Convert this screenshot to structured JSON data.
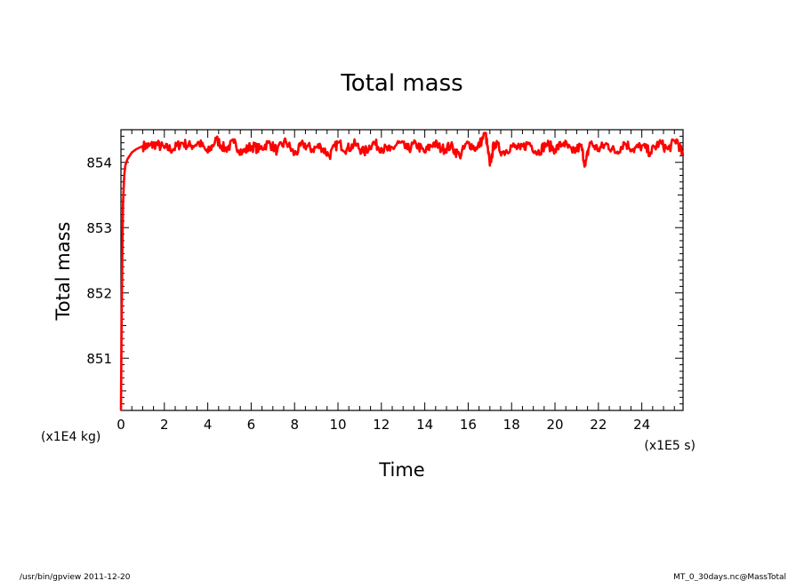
{
  "chart_data": {
    "type": "line",
    "title": "Total mass",
    "xlabel": "Time",
    "ylabel": "Total mass",
    "x_unit": "(x1E5 s)",
    "y_unit": "(x1E4 kg)",
    "xlim": [
      0,
      25.9
    ],
    "ylim": [
      850.2,
      854.5
    ],
    "x_ticks": [
      0,
      2,
      4,
      6,
      8,
      10,
      12,
      14,
      16,
      18,
      20,
      22,
      24
    ],
    "x_tick_labels": [
      "0",
      "2",
      "4",
      "6",
      "8",
      "10",
      "12",
      "14",
      "16",
      "18",
      "20",
      "22",
      "24"
    ],
    "y_ticks": [
      851,
      852,
      853,
      854
    ],
    "y_tick_labels": [
      "851",
      "852",
      "853",
      "854"
    ],
    "grid": false,
    "legend": "none",
    "series": [
      {
        "color": "#ff0000",
        "x": [
          0,
          0.03,
          0.06,
          0.1,
          0.15,
          0.2,
          0.3,
          0.4,
          0.5,
          0.7,
          1.0,
          1.3,
          1.6,
          2.0,
          2.4,
          2.8,
          3.2,
          3.6,
          4.0,
          4.4,
          4.8,
          5.2,
          5.6,
          6.0,
          6.4,
          6.8,
          7.2,
          7.6,
          8.0,
          8.4,
          8.8,
          9.2,
          9.6,
          10.0,
          10.4,
          10.8,
          11.2,
          11.6,
          12.0,
          12.4,
          12.8,
          13.2,
          13.6,
          14.0,
          14.4,
          14.8,
          15.2,
          15.6,
          16.0,
          16.4,
          16.8,
          17.0,
          17.2,
          17.6,
          18.0,
          18.4,
          18.8,
          19.2,
          19.6,
          20.0,
          20.4,
          20.8,
          21.2,
          21.4,
          21.6,
          22.0,
          22.4,
          22.8,
          23.2,
          23.6,
          24.0,
          24.4,
          24.8,
          25.2,
          25.6,
          25.9
        ],
        "y": [
          850.2,
          851.5,
          852.6,
          853.4,
          853.8,
          853.95,
          854.05,
          854.1,
          854.15,
          854.2,
          854.25,
          854.25,
          854.28,
          854.22,
          854.2,
          854.3,
          854.25,
          854.3,
          854.15,
          854.35,
          854.2,
          854.3,
          854.15,
          854.25,
          854.2,
          854.3,
          854.18,
          854.32,
          854.12,
          854.28,
          854.2,
          854.25,
          854.1,
          854.3,
          854.2,
          854.28,
          854.15,
          854.3,
          854.22,
          854.18,
          854.3,
          854.2,
          854.28,
          854.15,
          854.3,
          854.2,
          854.25,
          854.1,
          854.3,
          854.2,
          854.45,
          853.95,
          854.3,
          854.15,
          854.25,
          854.2,
          854.3,
          854.15,
          854.28,
          854.2,
          854.3,
          854.15,
          854.25,
          853.95,
          854.3,
          854.2,
          854.28,
          854.15,
          854.3,
          854.2,
          854.25,
          854.15,
          854.3,
          854.2,
          854.35,
          854.1
        ]
      }
    ]
  },
  "footer": {
    "left": "/usr/bin/gpview   2011-12-20",
    "right": "MT_0_30days.nc@MassTotal"
  }
}
